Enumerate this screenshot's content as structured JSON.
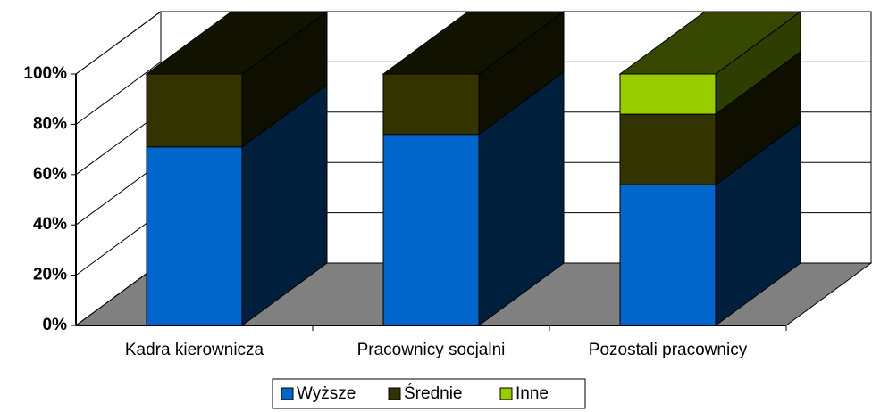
{
  "chart_data": {
    "type": "bar3d_stacked",
    "categories": [
      "Kadra kierownicza",
      "Pracownicy socjalni",
      "Pozostali pracownicy"
    ],
    "series": [
      {
        "name": "Wyższe",
        "color": "#0066cc",
        "values": [
          71,
          76,
          56
        ]
      },
      {
        "name": "Średnie",
        "color": "#333300",
        "values": [
          29,
          24,
          28
        ]
      },
      {
        "name": "Inne",
        "color": "#99cc00",
        "values": [
          0,
          0,
          16
        ]
      }
    ],
    "ylim": [
      0,
      100
    ],
    "yticks": [
      {
        "value": 0,
        "label": "0%"
      },
      {
        "value": 20,
        "label": "20%"
      },
      {
        "value": 40,
        "label": "40%"
      },
      {
        "value": 60,
        "label": "60%"
      },
      {
        "value": 80,
        "label": "80%"
      },
      {
        "value": 100,
        "label": "100%"
      }
    ],
    "grid": true,
    "legend": "bottom"
  }
}
